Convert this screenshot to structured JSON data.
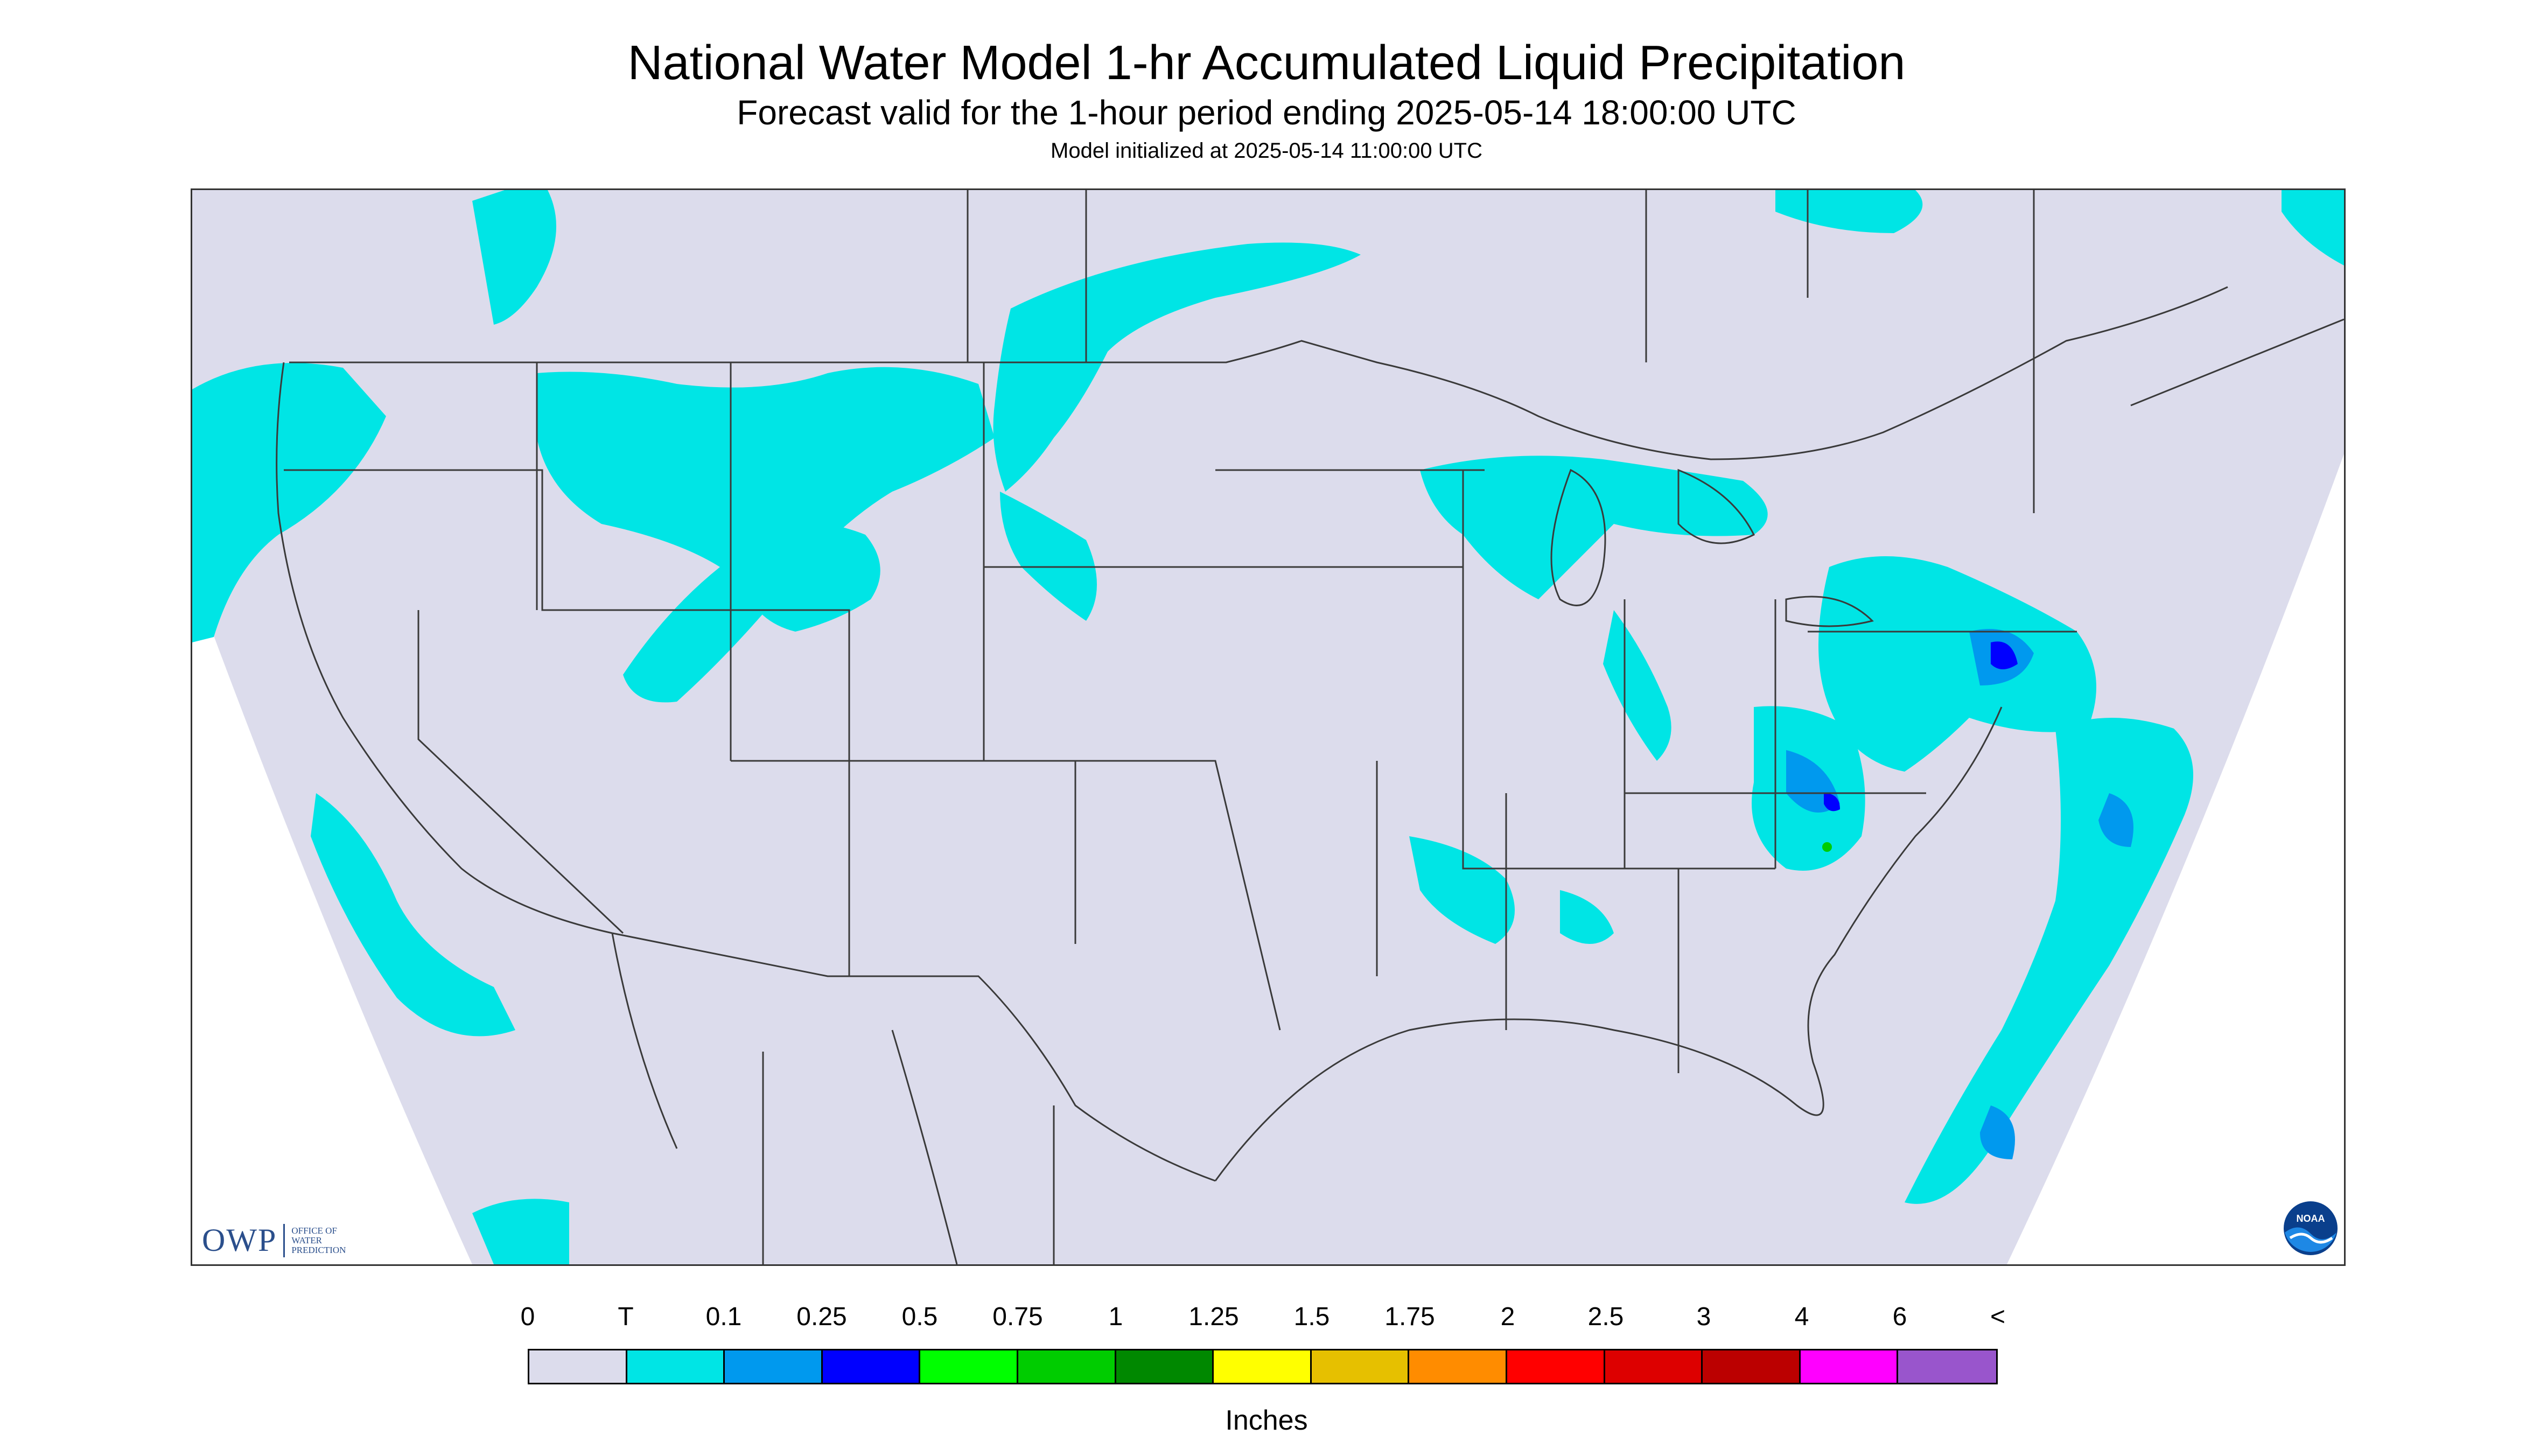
{
  "header": {
    "title": "National Water Model 1-hr Accumulated Liquid Precipitation",
    "subtitle": "Forecast valid for the 1-hour period ending 2025-05-14 18:00:00 UTC",
    "init_line": "Model initialized at 2025-05-14 11:00:00 UTC"
  },
  "logos": {
    "owp_text": "OWP",
    "owp_sub": [
      "Office of",
      "Water",
      "Prediction"
    ],
    "noaa_text": "NOAA"
  },
  "colors": {
    "no_data_background": "#dcdcec",
    "map_outline": "#3a3a3a",
    "trace": "#00e5e5",
    "light": "#0099ee",
    "moderate": "#0000ff",
    "heavy": "#00cc00"
  },
  "legend": {
    "tick_labels": [
      "0",
      "T",
      "0.1",
      "0.25",
      "0.5",
      "0.75",
      "1",
      "1.25",
      "1.5",
      "1.75",
      "2",
      "2.5",
      "3",
      "4",
      "6",
      "<"
    ],
    "swatch_colors": [
      "#dcdcec",
      "#00e5e5",
      "#0099ee",
      "#0000ff",
      "#00ff00",
      "#00cc00",
      "#008800",
      "#ffff00",
      "#e6c000",
      "#ff8c00",
      "#ff0000",
      "#dd0000",
      "#bb0000",
      "#ff00ff",
      "#9955cc"
    ],
    "units": "Inches"
  },
  "precip_regions": [
    {
      "name": "pacific-northwest",
      "level": "trace"
    },
    {
      "name": "northern-rockies",
      "level": "trace"
    },
    {
      "name": "montana-north-dakota-band",
      "level": "trace"
    },
    {
      "name": "colorado-utah",
      "level": "trace"
    },
    {
      "name": "great-lakes",
      "level": "trace"
    },
    {
      "name": "mid-atlantic-northeast",
      "level": "moderate"
    },
    {
      "name": "carolinas-appalachia",
      "level": "light"
    },
    {
      "name": "lower-mississippi",
      "level": "trace"
    },
    {
      "name": "western-atlantic",
      "level": "light"
    },
    {
      "name": "pacific-offshore",
      "level": "trace"
    }
  ]
}
